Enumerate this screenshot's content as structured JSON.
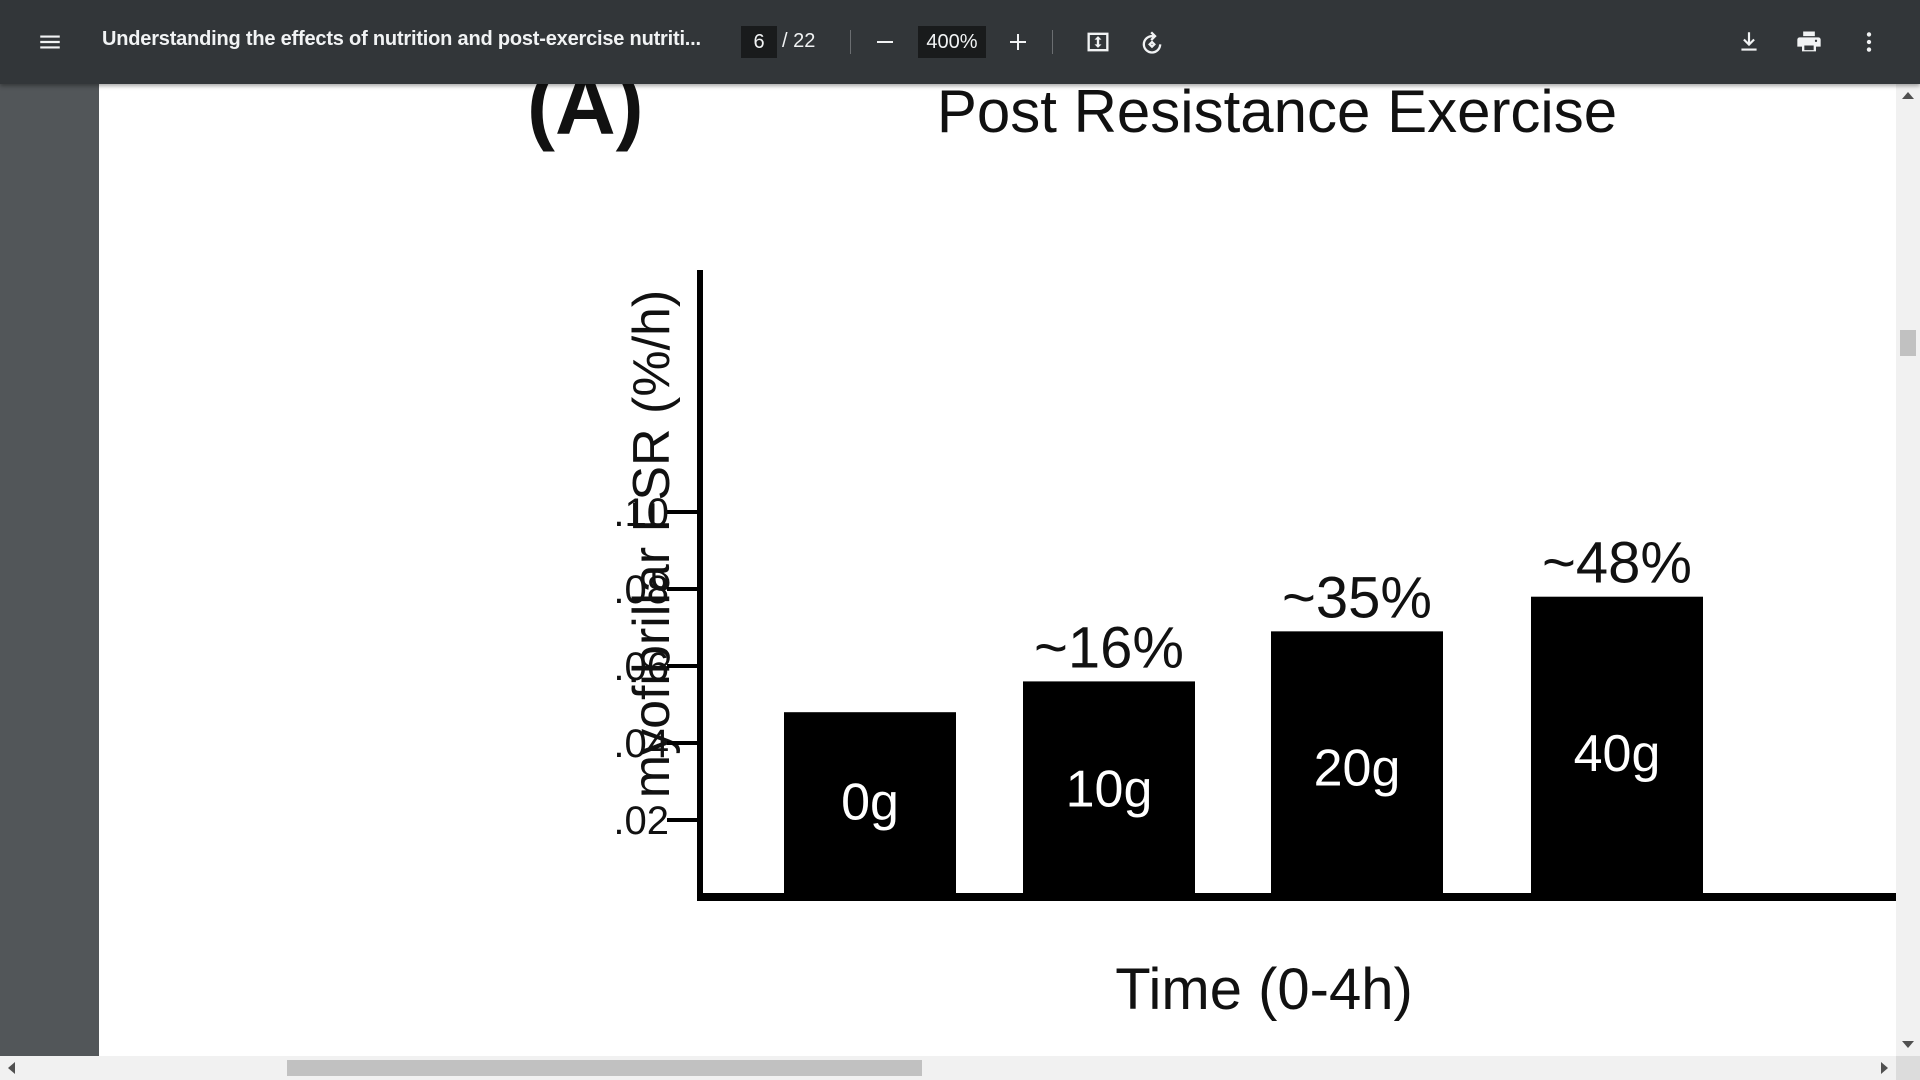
{
  "toolbar": {
    "doc_title": "Understanding the effects of nutrition and post-exercise nutriti...",
    "current_page": "6",
    "total_pages": "/ 22",
    "zoom": "400%",
    "icons": [
      "menu-icon",
      "minus-icon",
      "plus-icon",
      "fit-page-icon",
      "rotate-icon",
      "download-icon",
      "print-icon",
      "more-vert-icon"
    ]
  },
  "figure": {
    "panel_label": "(A)",
    "title": "Post Resistance Exercise",
    "xlabel": "Time (0-4h)",
    "ylabel": "myofibrillar FSR (%/h)"
  },
  "chart_data": {
    "type": "bar",
    "title": "Post Resistance Exercise",
    "xlabel": "Time (0-4h)",
    "ylabel": "myofibrillar FSR (%/h)",
    "categories": [
      "0g",
      "10g",
      "20g",
      "40g"
    ],
    "values": [
      0.048,
      0.056,
      0.069,
      0.078
    ],
    "annotations": [
      "",
      "~16%",
      "~35%",
      "~48%"
    ],
    "yticks": [
      ".02",
      ".04",
      ".06",
      ".08",
      ".10"
    ],
    "ytick_values": [
      0.02,
      0.04,
      0.06,
      0.08,
      0.1
    ],
    "ylim": [
      0,
      0.13
    ],
    "bar_color": "#000000",
    "grid": false
  }
}
